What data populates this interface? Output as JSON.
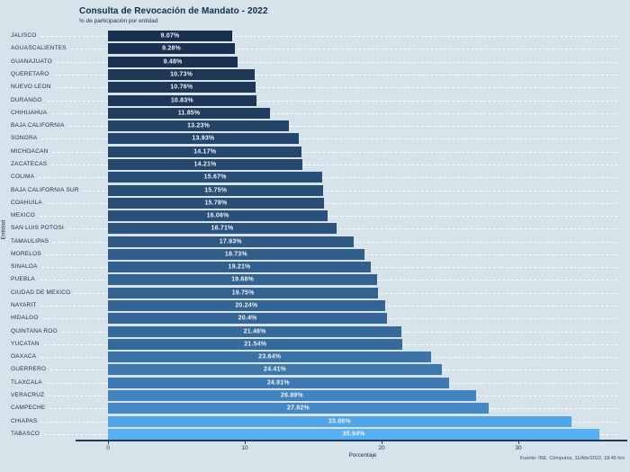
{
  "figure": {
    "background_color": "#d7e3ea",
    "text_color": "#15324e"
  },
  "chart_data": {
    "type": "bar",
    "orientation": "horizontal",
    "title": "Consulta de Revocación de Mandato - 2022",
    "subtitle": "% de participación por entidad",
    "xlabel": "Porcentaje",
    "ylabel": "Entidad",
    "xlim": [
      0,
      37.2
    ],
    "x_ticks": [
      0,
      10,
      20,
      30
    ],
    "grid": "horizontal white dashed lines per category, no vertical gridlines",
    "legend": "none",
    "categories": [
      "JALISCO",
      "AGUASCALIENTES",
      "GUANAJUATO",
      "QUERETARO",
      "NUEVO LEON",
      "DURANGO",
      "CHIHUAHUA",
      "BAJA CALIFORNIA",
      "SONORA",
      "MICHOACAN",
      "ZACATECAS",
      "COLIMA",
      "BAJA CALIFORNIA SUR",
      "COAHUILA",
      "MEXICO",
      "SAN LUIS POTOSI",
      "TAMAULIPAS",
      "MORELOS",
      "SINALOA",
      "PUEBLA",
      "CIUDAD DE MEXICO",
      "NAYARIT",
      "HIDALGO",
      "QUINTANA ROO",
      "YUCATAN",
      "OAXACA",
      "GUERRERO",
      "TLAXCALA",
      "VERACRUZ",
      "CAMPECHE",
      "CHIAPAS",
      "TABASCO"
    ],
    "values": [
      9.07,
      9.28,
      9.48,
      10.73,
      10.76,
      10.83,
      11.85,
      13.23,
      13.93,
      14.17,
      14.21,
      15.67,
      15.75,
      15.78,
      16.06,
      16.71,
      17.93,
      18.73,
      19.21,
      19.68,
      19.75,
      20.24,
      20.4,
      21.46,
      21.54,
      23.64,
      24.41,
      24.91,
      26.89,
      27.82,
      33.86,
      35.94
    ],
    "bar_labels": [
      "9.07%",
      "9.28%",
      "9.48%",
      "10.73%",
      "10.76%",
      "10.83%",
      "11.85%",
      "13.23%",
      "13.93%",
      "14.17%",
      "14.21%",
      "15.67%",
      "15.75%",
      "15.78%",
      "16.06%",
      "16.71%",
      "17.93%",
      "18.73%",
      "19.21%",
      "19.68%",
      "19.75%",
      "20.24%",
      "20.4%",
      "21.46%",
      "21.54%",
      "23.64%",
      "24.41%",
      "24.91%",
      "26.89%",
      "27.82%",
      "33.86%",
      "35.94%"
    ],
    "color_scale": {
      "mapping": "value",
      "low": "#1a2f4d",
      "high": "#57aff6"
    },
    "bar_label_color": "#edf2f7",
    "source_note": "Fuente: INE. Cómputos, 11/Abr/2022, 18:45 hrs"
  }
}
